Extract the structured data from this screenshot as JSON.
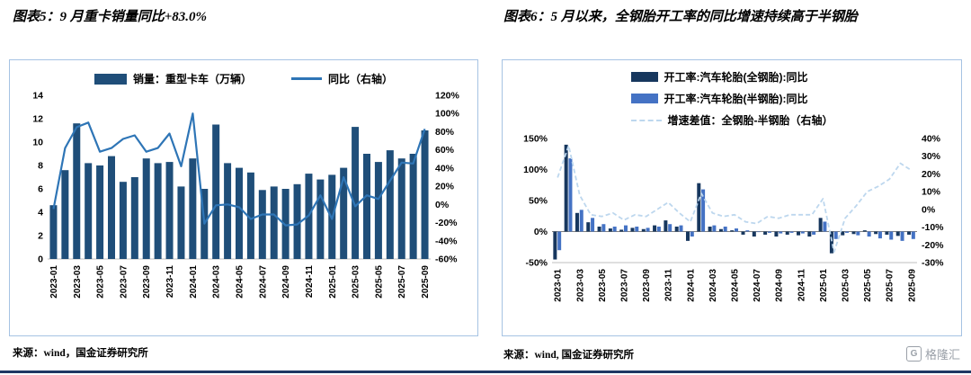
{
  "page": {
    "watermark": {
      "icon": "G",
      "text": "格隆汇"
    },
    "colors": {
      "dark_navy": "#1F4E79",
      "mid_blue": "#2E75B6",
      "light_dash_blue": "#BDD7EE",
      "panel_border": "#A6C3E3",
      "bottom_rule": "#1F3864"
    }
  },
  "chart_data": [
    {
      "type": "bar",
      "title": "图表5：9 月重卡销量同比+83.0%",
      "source": "来源：wind，国金证券研究所",
      "categories": [
        "2023-01",
        "2023-02",
        "2023-03",
        "2023-04",
        "2023-05",
        "2023-06",
        "2023-07",
        "2023-08",
        "2023-09",
        "2023-10",
        "2023-11",
        "2023-12",
        "2024-01",
        "2024-02",
        "2024-03",
        "2024-04",
        "2024-05",
        "2024-06",
        "2024-07",
        "2024-08",
        "2024-09",
        "2024-10",
        "2024-11",
        "2024-12",
        "2025-01",
        "2025-02",
        "2025-03",
        "2025-04",
        "2025-05",
        "2025-06",
        "2025-07",
        "2025-08",
        "2025-09"
      ],
      "x_tick_every": 2,
      "series": [
        {
          "name": "销量：重型卡车（万辆）",
          "type": "bar",
          "axis": "left",
          "color": "#1F4E79",
          "values": [
            4.6,
            7.6,
            11.6,
            8.2,
            8.0,
            8.8,
            6.6,
            7.0,
            8.6,
            8.2,
            8.3,
            6.2,
            8.6,
            6.0,
            11.5,
            8.2,
            7.8,
            7.4,
            5.9,
            6.2,
            6.0,
            6.4,
            7.3,
            6.8,
            7.2,
            7.8,
            11.3,
            9.0,
            8.3,
            9.3,
            8.6,
            9.0,
            11.0
          ]
        },
        {
          "name": "同比（右轴）",
          "type": "line",
          "axis": "right",
          "color": "#2E75B6",
          "values": [
            -5,
            62,
            85,
            90,
            58,
            62,
            72,
            76,
            58,
            62,
            78,
            42,
            100,
            -21,
            -1,
            0,
            -3,
            -16,
            -11,
            -11,
            -23,
            -22,
            -12,
            10,
            -16,
            30,
            -2,
            10,
            6,
            26,
            46,
            45,
            83
          ]
        }
      ],
      "left_axis": {
        "min": 0,
        "max": 14,
        "step": 2,
        "format": "number",
        "tick_labels": [
          "0",
          "2",
          "4",
          "6",
          "8",
          "10",
          "12",
          "14"
        ]
      },
      "right_axis": {
        "min": -60,
        "max": 120,
        "step": 20,
        "format": "percent",
        "tick_labels": [
          "-60%",
          "-40%",
          "-20%",
          "0%",
          "20%",
          "40%",
          "60%",
          "80%",
          "100%",
          "120%"
        ]
      },
      "legend_position": "top",
      "grid": false
    },
    {
      "type": "bar",
      "title": "图表6：5 月以来，全钢胎开工率的同比增速持续高于半钢胎",
      "source": "来源：wind, 国金证券研究所",
      "categories": [
        "2023-01",
        "2023-02",
        "2023-03",
        "2023-04",
        "2023-05",
        "2023-06",
        "2023-07",
        "2023-08",
        "2023-09",
        "2023-10",
        "2023-11",
        "2023-12",
        "2024-01",
        "2024-02",
        "2024-03",
        "2024-04",
        "2024-05",
        "2024-06",
        "2024-07",
        "2024-08",
        "2024-09",
        "2024-10",
        "2024-11",
        "2024-12",
        "2025-01",
        "2025-02",
        "2025-03",
        "2025-04",
        "2025-05",
        "2025-06",
        "2025-07",
        "2025-08",
        "2025-09"
      ],
      "x_tick_every": 2,
      "series": [
        {
          "name": "开工率:汽车轮胎(全钢胎):同比",
          "type": "bar",
          "axis": "left",
          "color": "#17375E",
          "values": [
            -45,
            140,
            30,
            15,
            8,
            5,
            3,
            6,
            4,
            10,
            18,
            8,
            -15,
            78,
            8,
            4,
            2,
            -5,
            -8,
            -5,
            -8,
            -5,
            -6,
            -8,
            22,
            -35,
            -6,
            -4,
            2,
            -4,
            -5,
            -7,
            -5
          ]
        },
        {
          "name": "开工率:汽车轮胎(半钢胎):同比",
          "type": "bar",
          "axis": "left",
          "color": "#4472C4",
          "values": [
            -30,
            118,
            35,
            22,
            12,
            8,
            10,
            8,
            6,
            8,
            12,
            10,
            -8,
            68,
            10,
            8,
            5,
            2,
            0,
            -2,
            -3,
            -2,
            -3,
            -5,
            16,
            -12,
            -2,
            -6,
            -8,
            -11,
            -13,
            -15,
            -12
          ]
        },
        {
          "name": "增速差值：全钢胎-半钢胎（右轴）",
          "type": "line",
          "dashed": true,
          "axis": "right",
          "color": "#BDD7EE",
          "values": [
            18,
            36,
            8,
            -3,
            -4,
            -2,
            -6,
            -3,
            -4,
            0,
            4,
            -2,
            -7,
            9,
            -2,
            -4,
            -3,
            -7,
            -8,
            -4,
            -5,
            -3,
            -3,
            -3,
            6,
            -24,
            -5,
            2,
            10,
            13,
            17,
            26,
            22
          ]
        }
      ],
      "left_axis": {
        "min": -50,
        "max": 150,
        "step": 50,
        "format": "percent",
        "tick_labels": [
          "-50%",
          "0%",
          "50%",
          "100%",
          "150%"
        ]
      },
      "right_axis": {
        "min": -30,
        "max": 40,
        "step": 10,
        "format": "percent",
        "tick_labels": [
          "-30%",
          "-20%",
          "-10%",
          "0%",
          "10%",
          "20%",
          "30%",
          "40%"
        ]
      },
      "legend_position": "top",
      "grid": false
    }
  ]
}
